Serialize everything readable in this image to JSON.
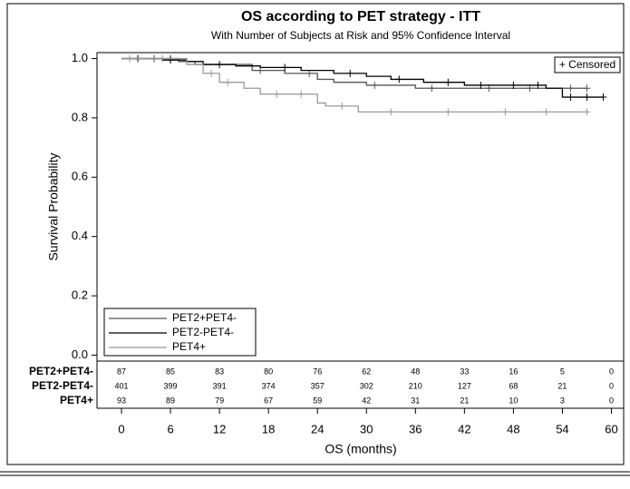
{
  "chart_data": {
    "type": "step",
    "title": "OS according to PET strategy - ITT",
    "subtitle": "With Number of Subjects at Risk and 95% Confidence Interval",
    "xlabel": "OS (months)",
    "ylabel": "Survival Probability",
    "censor_legend": "+ Censored",
    "xlim": [
      -3,
      61.5
    ],
    "xticks": [
      0,
      6,
      12,
      18,
      24,
      30,
      36,
      42,
      48,
      54,
      60
    ],
    "ylim": [
      -0.02,
      1.02
    ],
    "yticks": [
      {
        "value": 0,
        "label": "0.0"
      },
      0.2,
      0.4,
      0.6,
      0.8,
      {
        "value": 1,
        "label": "1.0"
      }
    ],
    "series": [
      {
        "name": "PET2+PET4-",
        "color": "#555555",
        "x": [
          0,
          7,
          9,
          16,
          20,
          24,
          26,
          30,
          36,
          57
        ],
        "values": [
          1.0,
          0.99,
          0.98,
          0.96,
          0.95,
          0.93,
          0.92,
          0.91,
          0.9,
          0.9
        ],
        "censored_x": [
          4,
          6,
          17,
          23,
          31,
          38,
          45,
          50,
          55,
          57
        ],
        "at_risk": [
          87,
          85,
          83,
          80,
          76,
          62,
          48,
          33,
          16,
          5,
          0
        ]
      },
      {
        "name": "PET2-PET4-",
        "color": "#000000",
        "x": [
          0,
          5,
          8,
          10,
          14,
          17,
          22,
          26,
          30,
          33,
          37,
          42,
          52,
          54,
          59
        ],
        "values": [
          1.0,
          0.995,
          0.99,
          0.98,
          0.975,
          0.97,
          0.96,
          0.95,
          0.94,
          0.93,
          0.92,
          0.91,
          0.9,
          0.87,
          0.87
        ],
        "censored_x": [
          2,
          6,
          12,
          20,
          28,
          34,
          40,
          44,
          48,
          51,
          55,
          57,
          59
        ],
        "at_risk": [
          401,
          399,
          391,
          374,
          357,
          302,
          210,
          127,
          68,
          21,
          0
        ]
      },
      {
        "name": "PET4+",
        "color": "#999999",
        "x": [
          0,
          8,
          10,
          12,
          15,
          17,
          24,
          25,
          29,
          57
        ],
        "values": [
          1.0,
          0.98,
          0.95,
          0.92,
          0.9,
          0.88,
          0.85,
          0.84,
          0.82,
          0.82
        ],
        "censored_x": [
          1,
          5,
          11,
          13,
          19,
          22,
          27,
          33,
          40,
          47,
          52,
          57
        ],
        "at_risk": [
          93,
          89,
          79,
          67,
          59,
          42,
          31,
          21,
          10,
          3,
          0
        ]
      }
    ]
  }
}
